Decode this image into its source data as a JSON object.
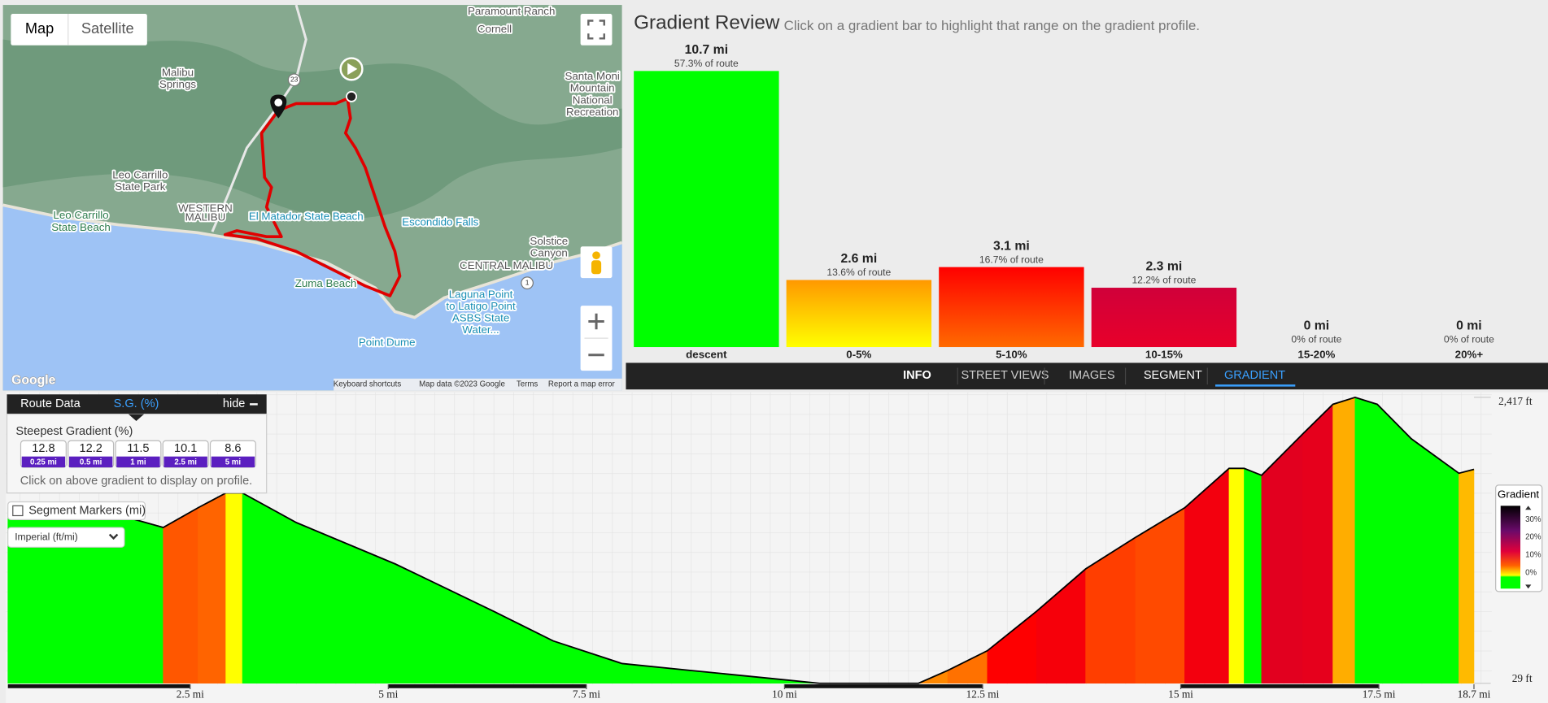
{
  "map": {
    "buttons": [
      "Map",
      "Satellite"
    ],
    "labels": [
      [
        "Paramount Ranch"
      ],
      [
        "Cornell"
      ],
      [
        "Malibu",
        "Springs"
      ],
      [
        "Santa Moni",
        "Mountain",
        "National",
        "Recreation"
      ],
      [
        "Leo Carrillo",
        "State Park"
      ],
      [
        "Leo Carrillo",
        "State Beach"
      ],
      [
        "WESTERN",
        "MALIBU"
      ],
      [
        "El Matador State Beach"
      ],
      [
        "Escondido Falls"
      ],
      [
        "Solstice",
        "Canyon"
      ],
      [
        "CENTRAL MALIBU"
      ],
      [
        "Zuma Beach"
      ],
      [
        "Laguna Point",
        "to Latigo Point",
        "ASBS State",
        "Water..."
      ],
      [
        "Point Dume"
      ]
    ],
    "shields": [
      "23",
      "1"
    ],
    "logo": "Google",
    "footer": [
      "Keyboard shortcuts",
      "Map data ©2023 Google",
      "Terms",
      "Report a map error"
    ]
  },
  "gradient_review": {
    "title": "Gradient Review",
    "subtitle": "Click on a gradient bar to highlight that range on the gradient profile.",
    "categories": [
      "descent",
      "0-5%",
      "5-10%",
      "10-15%",
      "15-20%",
      "20%+"
    ],
    "values": [
      10.7,
      2.6,
      3.1,
      2.3,
      0,
      0
    ],
    "value_labels": [
      "10.7 mi",
      "2.6 mi",
      "3.1 mi",
      "2.3 mi",
      "0 mi",
      "0 mi"
    ],
    "shares": [
      57.3,
      13.6,
      16.7,
      12.2,
      0,
      0
    ],
    "share_labels": [
      "57.3% of route",
      "13.6% of route",
      "16.7% of route",
      "12.2% of route",
      "0% of route",
      "0% of route"
    ]
  },
  "tabs": [
    "INFO",
    "STREET VIEWS",
    "IMAGES",
    "SEGMENT",
    "GRADIENT"
  ],
  "route_panel": {
    "tabs": [
      "Route Data",
      "S.G. (%)"
    ],
    "hide": "hide",
    "heading": "Steepest Gradient (%)",
    "gradients": [
      {
        "value": "12.8",
        "distance": "0.25 mi"
      },
      {
        "value": "12.2",
        "distance": "0.5 mi"
      },
      {
        "value": "11.5",
        "distance": "1 mi"
      },
      {
        "value": "10.1",
        "distance": "2.5 mi"
      },
      {
        "value": "8.6",
        "distance": "5 mi"
      }
    ],
    "hint": "Click on above gradient to display on profile.",
    "checkbox": "Segment Markers (mi)",
    "units": "Imperial (ft/mi)"
  },
  "profile": {
    "x": [
      0.2,
      1.35,
      1.72,
      2.16,
      2.6,
      2.95,
      3.16,
      3.84,
      5.09,
      6.33,
      7.08,
      7.95,
      8.82,
      9.82,
      10.44,
      11.69,
      12.06,
      12.56,
      13.18,
      13.8,
      14.43,
      15.05,
      15.61,
      15.8,
      16.02,
      16.54,
      16.92,
      17.2,
      17.48,
      17.91,
      18.51,
      18.7
    ],
    "elevation": [
      1495,
      1454,
      1412,
      1330,
      1495,
      1618,
      1618,
      1371,
      1025,
      630,
      383,
      194,
      136,
      70,
      29,
      29,
      136,
      301,
      630,
      984,
      1248,
      1495,
      1824,
      1824,
      1766,
      2112,
      2359,
      2417,
      2359,
      2071,
      1783,
      1816
    ],
    "xlim": [
      0.2,
      18.7
    ],
    "ylim": [
      29,
      2417
    ],
    "xticks": [
      {
        "value": 2.5,
        "label": "2.5 mi"
      },
      {
        "value": 5,
        "label": "5 mi"
      },
      {
        "value": 7.5,
        "label": "7.5 mi"
      },
      {
        "value": 10,
        "label": "10 mi"
      },
      {
        "value": 12.5,
        "label": "12.5 mi"
      },
      {
        "value": 15,
        "label": "15 mi"
      },
      {
        "value": 17.5,
        "label": "17.5 mi"
      },
      {
        "value": 18.7,
        "label": "18.7 mi"
      }
    ],
    "yticks": [
      {
        "value": 29,
        "label": "29 ft"
      },
      {
        "value": 2417,
        "label": "2,417 ft"
      }
    ]
  },
  "legend": {
    "title": "Gradient",
    "labels": [
      "30%",
      "20%",
      "10%",
      "0%"
    ]
  }
}
